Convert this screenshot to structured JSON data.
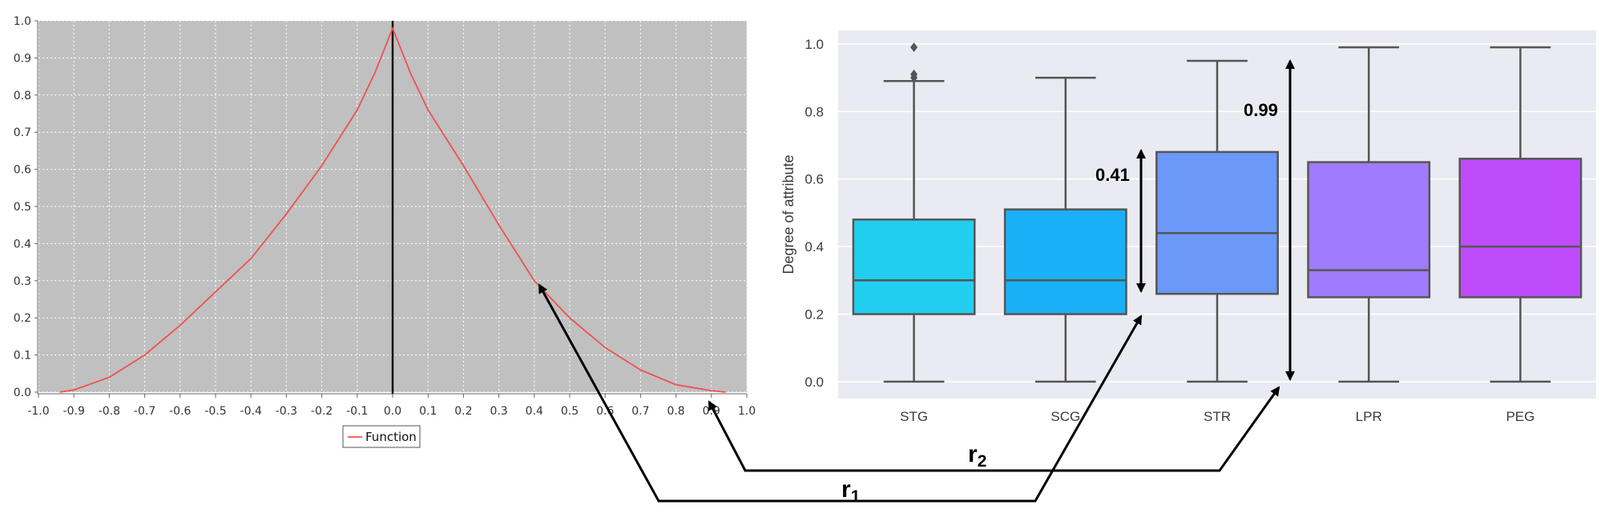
{
  "chart_data": [
    {
      "type": "line",
      "xlim": [
        -1.0,
        1.0
      ],
      "ylim": [
        0.0,
        1.0
      ],
      "x_ticks": [
        "-1.0",
        "-0.9",
        "-0.8",
        "-0.7",
        "-0.6",
        "-0.5",
        "-0.4",
        "-0.3",
        "-0.2",
        "-0.1",
        "0.0",
        "0.1",
        "0.2",
        "0.3",
        "0.4",
        "0.5",
        "0.6",
        "0.7",
        "0.8",
        "0.9",
        "1.0"
      ],
      "y_ticks": [
        "0.0",
        "0.1",
        "0.2",
        "0.3",
        "0.4",
        "0.5",
        "0.6",
        "0.7",
        "0.8",
        "0.9",
        "1.0"
      ],
      "grid": true,
      "background": "#c0c0c0",
      "legend": "bottom-center",
      "series": [
        {
          "name": "Function",
          "color": "#f05050",
          "x": [
            -0.94,
            -0.9,
            -0.8,
            -0.7,
            -0.6,
            -0.5,
            -0.4,
            -0.3,
            -0.2,
            -0.1,
            -0.05,
            0.0,
            0.05,
            0.1,
            0.2,
            0.3,
            0.4,
            0.5,
            0.6,
            0.7,
            0.8,
            0.9,
            0.94
          ],
          "y": [
            0.0,
            0.006,
            0.04,
            0.1,
            0.18,
            0.27,
            0.36,
            0.48,
            0.61,
            0.76,
            0.86,
            0.98,
            0.86,
            0.76,
            0.61,
            0.45,
            0.3,
            0.2,
            0.12,
            0.06,
            0.02,
            0.004,
            0.0
          ]
        }
      ],
      "vline_x": 0.0
    },
    {
      "type": "box",
      "ylabel": "Degree of attribute",
      "ylim": [
        -0.05,
        1.04
      ],
      "y_ticks": [
        "0.0",
        "0.2",
        "0.4",
        "0.6",
        "0.8",
        "1.0"
      ],
      "categories": [
        "STG",
        "SCG",
        "STR",
        "LPR",
        "PEG"
      ],
      "colors": [
        "#22cef0",
        "#1ab0f7",
        "#6b98f9",
        "#a07bfb",
        "#be4cfb"
      ],
      "boxes": [
        {
          "min": 0.0,
          "q1": 0.2,
          "median": 0.3,
          "q3": 0.48,
          "max": 0.89,
          "outliers": [
            0.9,
            0.91,
            0.99
          ]
        },
        {
          "min": 0.0,
          "q1": 0.2,
          "median": 0.3,
          "q3": 0.51,
          "max": 0.9,
          "outliers": []
        },
        {
          "min": 0.0,
          "q1": 0.26,
          "median": 0.44,
          "q3": 0.68,
          "max": 0.95,
          "outliers": []
        },
        {
          "min": 0.0,
          "q1": 0.25,
          "median": 0.33,
          "q3": 0.65,
          "max": 0.99,
          "outliers": []
        },
        {
          "min": 0.0,
          "q1": 0.25,
          "median": 0.4,
          "q3": 0.66,
          "max": 0.99,
          "outliers": []
        }
      ],
      "grid": true,
      "background": "#eaeaf2"
    }
  ],
  "annotations": {
    "span_a": "0.41",
    "span_b": "0.99",
    "r1_main": "r",
    "r1_sub": "1",
    "r2_main": "r",
    "r2_sub": "2"
  }
}
